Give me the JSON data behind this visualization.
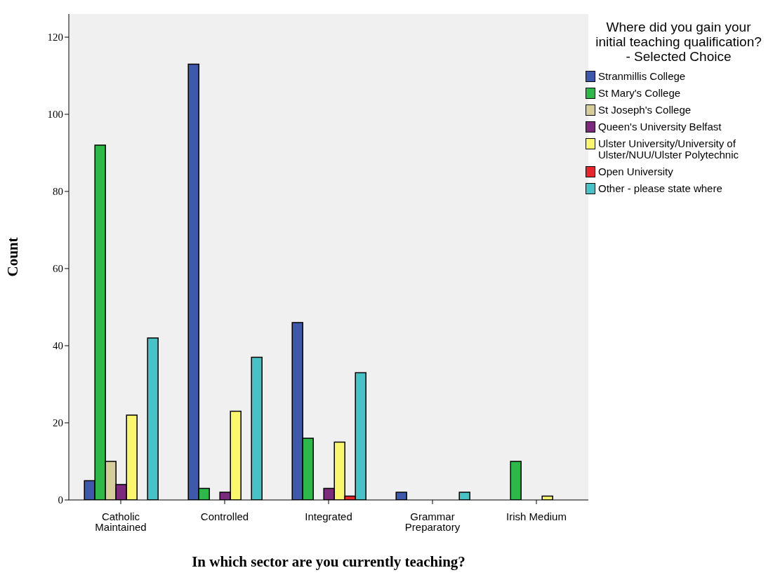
{
  "chart_data": {
    "type": "bar",
    "xlabel": "In which sector are you currently teaching?",
    "ylabel": "Count",
    "legend_title": "Where did you gain your initial teaching qualification? - Selected Choice",
    "categories": [
      "Catholic Maintained",
      "Controlled",
      "Integrated",
      "Grammar Preparatory",
      "Irish Medium"
    ],
    "series": [
      {
        "name": "Stranmillis College",
        "color": "#3e58ac",
        "values": [
          5,
          113,
          46,
          2,
          null
        ]
      },
      {
        "name": "St Mary's College",
        "color": "#2db84a",
        "values": [
          92,
          3,
          16,
          null,
          10
        ]
      },
      {
        "name": "St Joseph's College",
        "color": "#d5ce9a",
        "values": [
          10,
          null,
          null,
          null,
          null
        ]
      },
      {
        "name": "Queen's University Belfast",
        "color": "#7b2a7c",
        "values": [
          4,
          2,
          3,
          null,
          null
        ]
      },
      {
        "name": "Ulster University/University of Ulster/NUU/Ulster Polytechnic",
        "color": "#fbf76c",
        "values": [
          22,
          23,
          15,
          null,
          1
        ]
      },
      {
        "name": "Open University",
        "color": "#e8262b",
        "values": [
          null,
          null,
          1,
          null,
          null
        ]
      },
      {
        "name": "Other  - please state where",
        "color": "#47c2c6",
        "values": [
          42,
          37,
          33,
          2,
          null
        ]
      }
    ],
    "ylim": [
      0,
      126
    ],
    "yticks": [
      0,
      20,
      40,
      60,
      80,
      100,
      120
    ],
    "legend": "top right"
  }
}
